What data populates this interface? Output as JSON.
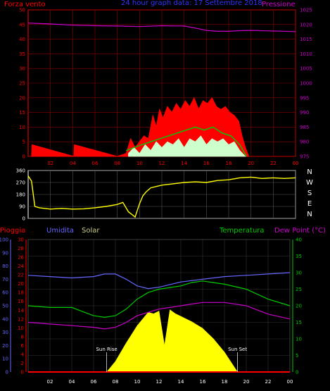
{
  "chart_data": [
    {
      "type": "line",
      "title": "24 hour graph data: 17 Settembre 2018",
      "left_title": "Forza vento",
      "right_title": "Pressione",
      "x_tick_labels": [
        "02",
        "04",
        "06",
        "08",
        "10",
        "12",
        "14",
        "16",
        "18",
        "20",
        "22",
        "00"
      ],
      "y_left_ticks": [
        0,
        5,
        10,
        15,
        20,
        25,
        30,
        35,
        40,
        45,
        50
      ],
      "y_right_ticks": [
        975,
        980,
        985,
        990,
        995,
        1000,
        1005,
        1010,
        1015,
        1020,
        1025
      ],
      "ylim_left": [
        0,
        50
      ],
      "ylim_right": [
        975,
        1025
      ],
      "grid": true,
      "colors": {
        "gust": "#ff0000",
        "wind": "#00cc00",
        "wind_avg": "#ccffcc",
        "pressure": "#cc00cc",
        "grid": "#8b0000",
        "axes": "#ff0000"
      },
      "series": [
        {
          "values_kind": "pressure_hpa",
          "x": [
            0,
            2,
            4,
            6,
            8,
            10,
            12,
            14,
            15,
            16,
            17,
            18,
            19,
            20,
            22,
            24
          ],
          "y": [
            1020.5,
            1020.2,
            1019.8,
            1019.6,
            1019.5,
            1019.3,
            1019.6,
            1019.5,
            1018.8,
            1018.0,
            1017.7,
            1017.7,
            1017.9,
            1018.0,
            1017.8,
            1017.6
          ]
        },
        {
          "values_kind": "gust_kmh",
          "x": [
            0.3,
            0.35,
            4.1,
            4.15,
            8.0,
            8.8,
            9.2,
            9.6,
            10.0,
            10.4,
            10.8,
            11.2,
            11.5,
            11.8,
            12.1,
            12.5,
            12.9,
            13.3,
            13.7,
            14.1,
            14.5,
            14.9,
            15.3,
            15.7,
            16.1,
            16.5,
            16.9,
            17.3,
            17.7,
            18.1,
            18.5,
            18.9,
            19.2,
            19.5,
            19.8
          ],
          "y": [
            0,
            4,
            0,
            4,
            0,
            1,
            6,
            3,
            5,
            7,
            6,
            14,
            10,
            16,
            13,
            17,
            15,
            18,
            16,
            19,
            17,
            20,
            16,
            19,
            18,
            20,
            17,
            16,
            17,
            15,
            14,
            12,
            7,
            3,
            0
          ]
        },
        {
          "values_kind": "wind_kmh",
          "x": [
            8.8,
            9.5,
            10.2,
            11.0,
            11.8,
            12.6,
            13.4,
            14.2,
            15.0,
            15.8,
            16.6,
            17.4,
            18.2,
            19.0,
            19.6
          ],
          "y": [
            2,
            3,
            4,
            5,
            6,
            7,
            8,
            9,
            10,
            9,
            10,
            8,
            7,
            4,
            0
          ]
        },
        {
          "values_kind": "wind_low_kmh",
          "x": [
            9.0,
            9.5,
            10.0,
            10.5,
            11.0,
            11.5,
            12.0,
            12.5,
            13.0,
            13.5,
            14.0,
            14.5,
            15.0,
            15.5,
            16.0,
            16.5,
            17.0,
            17.5,
            18.0,
            18.5,
            19.0,
            19.5
          ],
          "y": [
            1,
            3,
            1,
            4,
            2,
            5,
            3,
            5,
            4,
            6,
            3,
            6,
            5,
            7,
            4,
            6,
            5,
            6,
            4,
            5,
            2,
            0
          ]
        }
      ]
    },
    {
      "type": "line",
      "title": "",
      "y_ticks": [
        0,
        90,
        180,
        270,
        360
      ],
      "ylim": [
        0,
        360
      ],
      "compass_labels": [
        "N",
        "W",
        "S",
        "E",
        "N"
      ],
      "color": "#ffff00",
      "series": [
        {
          "values_kind": "wind_direction_deg",
          "x": [
            0,
            0.3,
            0.6,
            1,
            2,
            3,
            4,
            5,
            6,
            7,
            8,
            8.5,
            9,
            9.3,
            9.6,
            10,
            10.3,
            10.6,
            11,
            11.5,
            12,
            13,
            14,
            15,
            16,
            17,
            18,
            19,
            20,
            21,
            22,
            23,
            24
          ],
          "y": [
            320,
            280,
            90,
            80,
            70,
            75,
            70,
            72,
            80,
            90,
            105,
            120,
            50,
            30,
            10,
            110,
            170,
            200,
            230,
            240,
            250,
            260,
            270,
            275,
            270,
            285,
            290,
            305,
            310,
            300,
            305,
            300,
            305
          ]
        }
      ]
    },
    {
      "type": "line",
      "title": "",
      "legend": [
        "Pioggia",
        "Umidita",
        "Solar",
        "Temperatura",
        "Dew Point (°C)"
      ],
      "y_ticks_far_left": [
        0,
        10,
        20,
        30,
        40,
        50,
        60,
        70,
        80,
        90,
        100
      ],
      "y_ticks_left": [
        0,
        2,
        4,
        6,
        8,
        10,
        12,
        14,
        16,
        18,
        20,
        22,
        24,
        26,
        28,
        30
      ],
      "y_ticks_right": [
        0,
        5,
        10,
        15,
        20,
        25,
        30,
        35,
        40
      ],
      "ylim_temp": [
        0,
        40
      ],
      "ylim_humidity": [
        0,
        100
      ],
      "ylim_rain": [
        0,
        30
      ],
      "annotations": [
        "Sun Rise",
        "Sun Set"
      ],
      "sun_rise_hour": 7.2,
      "sun_set_hour": 19.2,
      "colors": {
        "humidity": "#6666ff",
        "temperature": "#00cc00",
        "dew_point": "#cc00cc",
        "solar": "#ffff00",
        "rain": "#ff0000",
        "axes": "#ff0000"
      },
      "series": [
        {
          "values_kind": "humidity_pct",
          "x": [
            0,
            2,
            4,
            6,
            7,
            8,
            9,
            10,
            11,
            12,
            13,
            14,
            16,
            18,
            20,
            22,
            24
          ],
          "y": [
            73,
            72,
            71,
            72,
            74,
            74,
            70,
            65,
            63,
            64,
            66,
            68,
            70,
            72,
            73,
            74,
            75
          ]
        },
        {
          "values_kind": "temperature_c",
          "x": [
            0,
            2,
            4,
            6,
            7,
            8,
            9,
            10,
            11,
            12,
            13,
            14,
            15,
            16,
            17,
            18,
            20,
            22,
            24
          ],
          "y": [
            20,
            19.5,
            19.5,
            17,
            16.5,
            17,
            19,
            22,
            24,
            25,
            25.5,
            26,
            27,
            27.5,
            27,
            26.5,
            25,
            22,
            20
          ]
        },
        {
          "values_kind": "dew_point_c",
          "x": [
            0,
            2,
            4,
            6,
            7,
            8,
            9,
            10,
            11,
            12,
            13,
            14,
            15,
            16,
            18,
            20,
            22,
            24
          ],
          "y": [
            15,
            14.5,
            14,
            13.5,
            13,
            13.5,
            15,
            17,
            18,
            19,
            19.5,
            20,
            20.5,
            21,
            21,
            20,
            17.5,
            16
          ]
        },
        {
          "values_kind": "solar_scaled_0_100",
          "x": [
            7.2,
            8,
            9,
            10,
            11,
            11.5,
            12,
            12.5,
            13,
            13.5,
            14,
            15,
            16,
            17,
            18,
            19.2
          ],
          "y": [
            0,
            8,
            22,
            35,
            45,
            44,
            46,
            20,
            47,
            44,
            42,
            38,
            33,
            25,
            15,
            0
          ]
        },
        {
          "values_kind": "rain_mm",
          "x": [
            0,
            24
          ],
          "y": [
            0,
            0
          ]
        }
      ]
    }
  ]
}
